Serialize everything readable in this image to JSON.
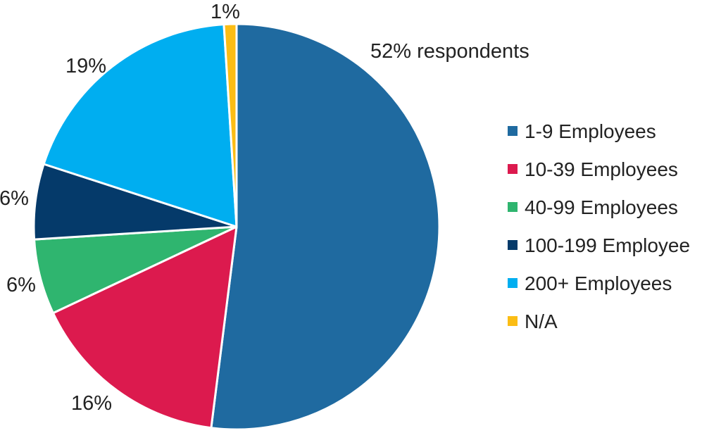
{
  "chart_data": {
    "type": "pie",
    "slices": [
      {
        "name": "1-9 Employees",
        "value": 52,
        "label": "52% respondents",
        "color": "#1f6aa0"
      },
      {
        "name": "10-39 Employees",
        "value": 16,
        "label": "16%",
        "color": "#dc1a4e"
      },
      {
        "name": "40-99 Employees",
        "value": 6,
        "label": "6%",
        "color": "#2fb56f"
      },
      {
        "name": "100-199 Employee",
        "value": 6,
        "label": "6%",
        "color": "#053a6a"
      },
      {
        "name": "200+ Employees",
        "value": 19,
        "label": "19%",
        "color": "#00aef0"
      },
      {
        "name": "N/A",
        "value": 1,
        "label": "1%",
        "color": "#fbbd15"
      }
    ],
    "legend_position": "right",
    "start": "top",
    "direction": "clockwise"
  }
}
